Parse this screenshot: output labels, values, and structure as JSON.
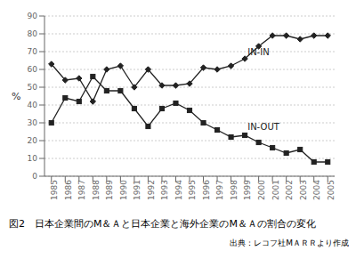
{
  "chart_data": {
    "type": "line",
    "x": [
      1985,
      1986,
      1987,
      1988,
      1989,
      1990,
      1991,
      1992,
      1993,
      1994,
      1995,
      1996,
      1997,
      1998,
      1999,
      2000,
      2001,
      2002,
      2003,
      2004,
      2005
    ],
    "series": [
      {
        "values": [
          63,
          54,
          55,
          42,
          60,
          62,
          50,
          60,
          51,
          51,
          52,
          61,
          60,
          62,
          66,
          73,
          79,
          79,
          77,
          79,
          79
        ],
        "color": "#222222",
        "marker": "diamond"
      },
      {
        "values": [
          30,
          44,
          42,
          56,
          48,
          48,
          38,
          28,
          38,
          41,
          37,
          30,
          26,
          22,
          23,
          19,
          16,
          13,
          15,
          8,
          8
        ],
        "color": "#222222",
        "marker": "square"
      }
    ],
    "xlim": [
      1984.5,
      2005.5
    ],
    "xticks": [
      1985,
      1986,
      1987,
      1988,
      1989,
      1990,
      1991,
      1992,
      1993,
      1994,
      1995,
      1996,
      1997,
      1998,
      1999,
      2000,
      2001,
      2002,
      2003,
      2004,
      2005
    ],
    "ylim": [
      0,
      90
    ],
    "yticks": [
      0,
      10,
      20,
      30,
      40,
      50,
      60,
      70,
      80,
      90
    ],
    "ylabel": "%",
    "grid": true,
    "annotations": [
      {
        "text": "IN-IN",
        "x": 1999.2,
        "y": 70
      },
      {
        "text": "IN-OUT",
        "x": 1999.2,
        "y": 28
      }
    ],
    "caption": "図2　日本企業間のM＆Ａと日本企業と海外企業のM＆Ａの割合の変化",
    "source": "出典：レコフ社MＡＲＲより作成"
  }
}
